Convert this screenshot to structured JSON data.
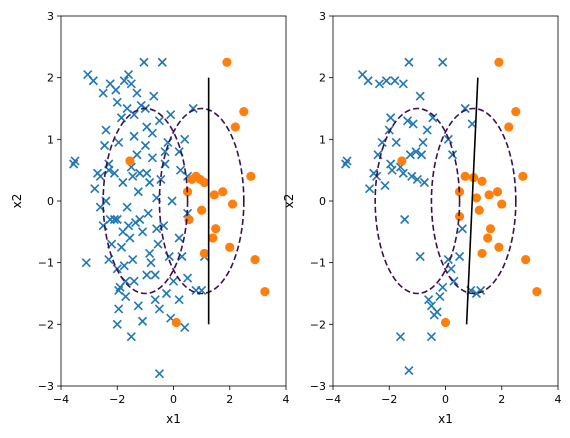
{
  "colors": {
    "class0": "#1f77b4",
    "class1": "#ff7f0e",
    "ellipse": "#3b0f4f",
    "boundary": "#000000"
  },
  "chart_data": [
    {
      "type": "scatter",
      "title": "",
      "xlabel": "x1",
      "ylabel": "x2",
      "xlim": [
        -4,
        4
      ],
      "ylim": [
        -3,
        3
      ],
      "xticks": [
        "−4",
        "−2",
        "0",
        "2",
        "4"
      ],
      "yticks": [
        "3",
        "2",
        "1",
        "0",
        "−1",
        "−2",
        "−3"
      ],
      "grid": false,
      "series": [
        {
          "marker": "x",
          "color": "#1f77b4",
          "points": [
            [
              -3.55,
              0.6
            ],
            [
              -3.5,
              0.65
            ],
            [
              -3.1,
              -1.0
            ],
            [
              -3.05,
              2.05
            ],
            [
              -2.85,
              1.95
            ],
            [
              -2.8,
              0.2
            ],
            [
              -2.7,
              0.45
            ],
            [
              -2.6,
              0.4
            ],
            [
              -2.5,
              -0.4
            ],
            [
              -2.45,
              0.9
            ],
            [
              -2.4,
              1.15
            ],
            [
              -2.3,
              0.6
            ],
            [
              -2.3,
              0.5
            ],
            [
              -2.25,
              -0.3
            ],
            [
              -2.2,
              -0.7
            ],
            [
              -2.1,
              -0.3
            ],
            [
              -2.05,
              1.8
            ],
            [
              -2.0,
              -1.1
            ],
            [
              -2.0,
              -0.3
            ],
            [
              -1.95,
              0.95
            ],
            [
              -1.95,
              -1.45
            ],
            [
              -1.9,
              -1.4
            ],
            [
              -1.8,
              0.3
            ],
            [
              -1.8,
              -0.5
            ],
            [
              -1.75,
              1.95
            ],
            [
              -1.7,
              -1.3
            ],
            [
              -1.65,
              -0.1
            ],
            [
              -1.65,
              1.5
            ],
            [
              -1.6,
              -0.4
            ],
            [
              -1.55,
              -0.6
            ],
            [
              -1.5,
              1.9
            ],
            [
              -1.5,
              0.55
            ],
            [
              -1.45,
              0.4
            ],
            [
              -1.4,
              -1.3
            ],
            [
              -1.4,
              1.05
            ],
            [
              -1.35,
              -0.35
            ],
            [
              -1.3,
              1.75
            ],
            [
              -1.25,
              0.15
            ],
            [
              -1.2,
              -0.3
            ],
            [
              -1.2,
              0.45
            ],
            [
              -1.15,
              1.55
            ],
            [
              -1.1,
              -0.5
            ],
            [
              -1.05,
              2.25
            ],
            [
              -1.0,
              0.9
            ],
            [
              -0.95,
              1.2
            ],
            [
              -0.9,
              -0.2
            ],
            [
              -0.85,
              0.3
            ],
            [
              -0.85,
              -0.85
            ],
            [
              -0.8,
              -1.0
            ],
            [
              -0.75,
              0.7
            ],
            [
              -0.7,
              1.7
            ],
            [
              -0.65,
              -1.2
            ],
            [
              -0.6,
              0.05
            ],
            [
              -0.55,
              -0.7
            ],
            [
              -0.5,
              1.3
            ],
            [
              -0.45,
              0.35
            ],
            [
              -0.4,
              2.25
            ],
            [
              -0.35,
              -0.4
            ],
            [
              -0.3,
              0.8
            ],
            [
              -0.25,
              -1.5
            ],
            [
              -0.2,
              0.95
            ],
            [
              -0.15,
              -0.9
            ],
            [
              -0.1,
              1.4
            ],
            [
              -0.05,
              0.0
            ],
            [
              0.0,
              -1.3
            ],
            [
              -0.3,
              0.6
            ],
            [
              -0.6,
              -0.45
            ],
            [
              -0.95,
              0.45
            ],
            [
              -1.3,
              0.75
            ],
            [
              -1.75,
              -1.05
            ],
            [
              -2.1,
              0.45
            ],
            [
              -1.5,
              -2.2
            ],
            [
              -2.0,
              -2.0
            ],
            [
              -1.95,
              -1.75
            ],
            [
              -1.7,
              -1.55
            ],
            [
              -1.25,
              -1.7
            ],
            [
              -1.1,
              -1.95
            ],
            [
              -0.65,
              -1.6
            ],
            [
              -0.5,
              -1.75
            ],
            [
              -0.5,
              -2.8
            ],
            [
              -0.1,
              -1.9
            ],
            [
              0.4,
              -2.05
            ],
            [
              0.2,
              -1.6
            ],
            [
              0.3,
              -0.9
            ],
            [
              0.5,
              -1.25
            ],
            [
              0.8,
              -1.45
            ],
            [
              1.0,
              -1.45
            ],
            [
              1.1,
              -0.9
            ],
            [
              0.2,
              0.8
            ],
            [
              0.25,
              0.5
            ],
            [
              0.4,
              1.0
            ],
            [
              0.5,
              0.4
            ],
            [
              0.7,
              1.5
            ],
            [
              0.5,
              -0.2
            ],
            [
              0.2,
              -0.6
            ],
            [
              -1.6,
              2.05
            ],
            [
              -2.25,
              1.9
            ],
            [
              -2.5,
              1.75
            ],
            [
              -2.0,
              1.6
            ],
            [
              -1.85,
              1.35
            ],
            [
              -1.4,
              1.4
            ],
            [
              -1.0,
              1.5
            ],
            [
              -0.75,
              1.1
            ],
            [
              -2.4,
              0.0
            ],
            [
              -2.6,
              -0.1
            ],
            [
              -2.3,
              -0.95
            ],
            [
              -1.85,
              -0.75
            ],
            [
              -1.45,
              -0.95
            ],
            [
              -0.95,
              -1.2
            ]
          ]
        },
        {
          "marker": "o",
          "color": "#ff7f0e",
          "points": [
            [
              -1.55,
              0.65
            ],
            [
              0.1,
              -1.97
            ],
            [
              0.5,
              0.15
            ],
            [
              0.55,
              -0.3
            ],
            [
              0.65,
              0.35
            ],
            [
              0.8,
              0.4
            ],
            [
              0.95,
              0.35
            ],
            [
              1.0,
              -0.15
            ],
            [
              1.1,
              -0.85
            ],
            [
              1.1,
              0.3
            ],
            [
              1.4,
              -0.6
            ],
            [
              1.45,
              0.1
            ],
            [
              1.5,
              -0.45
            ],
            [
              1.75,
              0.15
            ],
            [
              1.9,
              2.25
            ],
            [
              2.0,
              -0.75
            ],
            [
              2.1,
              -0.05
            ],
            [
              2.2,
              1.2
            ],
            [
              2.5,
              1.45
            ],
            [
              2.75,
              0.4
            ],
            [
              2.9,
              -0.95
            ],
            [
              3.25,
              -1.47
            ]
          ]
        }
      ],
      "ellipses": [
        {
          "center": [
            -1.0,
            0.0
          ],
          "rx": 1.5,
          "ry": 1.5,
          "style": "dashed"
        },
        {
          "center": [
            1.0,
            0.0
          ],
          "rx": 1.5,
          "ry": 1.5,
          "style": "dashed"
        }
      ],
      "boundary": {
        "from": [
          1.25,
          -2.0
        ],
        "to": [
          1.25,
          2.0
        ]
      }
    },
    {
      "type": "scatter",
      "title": "",
      "xlabel": "x1",
      "ylabel": "x2",
      "xlim": [
        -4,
        4
      ],
      "ylim": [
        -3,
        3
      ],
      "xticks": [
        "−4",
        "−2",
        "0",
        "2",
        "4"
      ],
      "yticks": [
        "3",
        "2",
        "1",
        "0",
        "−1",
        "−2",
        "−3"
      ],
      "grid": false,
      "series": [
        {
          "marker": "x",
          "color": "#1f77b4",
          "points": [
            [
              -3.55,
              0.6
            ],
            [
              -3.5,
              0.65
            ],
            [
              -2.95,
              2.05
            ],
            [
              -2.75,
              1.95
            ],
            [
              -2.7,
              0.2
            ],
            [
              -2.55,
              0.45
            ],
            [
              -2.45,
              0.4
            ],
            [
              -2.35,
              1.9
            ],
            [
              -2.25,
              0.95
            ],
            [
              -2.1,
              1.95
            ],
            [
              -2.0,
              1.15
            ],
            [
              -1.95,
              0.6
            ],
            [
              -1.9,
              0.5
            ],
            [
              -1.8,
              1.95
            ],
            [
              -1.75,
              0.95
            ],
            [
              -1.6,
              0.55
            ],
            [
              -1.5,
              0.45
            ],
            [
              -1.5,
              1.9
            ],
            [
              -1.45,
              -0.3
            ],
            [
              -1.35,
              1.3
            ],
            [
              -1.3,
              2.25
            ],
            [
              -1.2,
              0.4
            ],
            [
              -1.15,
              1.25
            ],
            [
              -1.0,
              0.35
            ],
            [
              -0.9,
              1.7
            ],
            [
              -0.85,
              0.75
            ],
            [
              -0.75,
              0.3
            ],
            [
              -0.65,
              1.15
            ],
            [
              -0.6,
              -1.6
            ],
            [
              -0.5,
              -1.7
            ],
            [
              -0.4,
              -1.85
            ],
            [
              -0.3,
              -1.8
            ],
            [
              -0.2,
              -1.55
            ],
            [
              -0.1,
              -1.4
            ],
            [
              0.1,
              -0.95
            ],
            [
              0.2,
              -1.1
            ],
            [
              0.3,
              -1.3
            ],
            [
              0.5,
              -0.9
            ],
            [
              0.6,
              -0.45
            ],
            [
              0.9,
              -1.45
            ],
            [
              1.1,
              -1.5
            ],
            [
              1.25,
              -1.45
            ],
            [
              0.1,
              1.0
            ],
            [
              0.25,
              0.75
            ],
            [
              0.7,
              1.5
            ],
            [
              0.95,
              1.25
            ],
            [
              -0.1,
              2.25
            ],
            [
              -1.6,
              -2.2
            ],
            [
              -1.3,
              -2.75
            ],
            [
              -0.5,
              -2.2
            ],
            [
              -0.8,
              0.95
            ],
            [
              -0.45,
              1.35
            ],
            [
              -1.05,
              0.8
            ],
            [
              -1.95,
              1.35
            ],
            [
              -2.15,
              0.25
            ],
            [
              -2.4,
              0.75
            ],
            [
              -1.25,
              0.75
            ],
            [
              -0.9,
              -0.9
            ]
          ]
        },
        {
          "marker": "o",
          "color": "#ff7f0e",
          "points": [
            [
              -1.55,
              0.65
            ],
            [
              0.0,
              -1.97
            ],
            [
              0.5,
              0.15
            ],
            [
              0.5,
              -0.25
            ],
            [
              0.7,
              0.4
            ],
            [
              1.0,
              0.38
            ],
            [
              1.1,
              0.05
            ],
            [
              1.2,
              -0.15
            ],
            [
              1.3,
              -0.85
            ],
            [
              1.3,
              0.32
            ],
            [
              1.5,
              -0.6
            ],
            [
              1.55,
              0.1
            ],
            [
              1.6,
              -0.45
            ],
            [
              1.85,
              0.15
            ],
            [
              1.9,
              2.25
            ],
            [
              1.9,
              -0.75
            ],
            [
              2.0,
              -0.05
            ],
            [
              2.25,
              1.2
            ],
            [
              2.5,
              1.45
            ],
            [
              2.75,
              0.4
            ],
            [
              2.85,
              -0.95
            ],
            [
              3.25,
              -1.47
            ]
          ]
        }
      ],
      "ellipses": [
        {
          "center": [
            -1.0,
            0.0
          ],
          "rx": 1.5,
          "ry": 1.5,
          "style": "dashed"
        },
        {
          "center": [
            1.0,
            0.0
          ],
          "rx": 1.5,
          "ry": 1.5,
          "style": "dashed"
        }
      ],
      "boundary": {
        "from": [
          0.75,
          -2.0
        ],
        "to": [
          1.15,
          2.0
        ]
      }
    }
  ]
}
